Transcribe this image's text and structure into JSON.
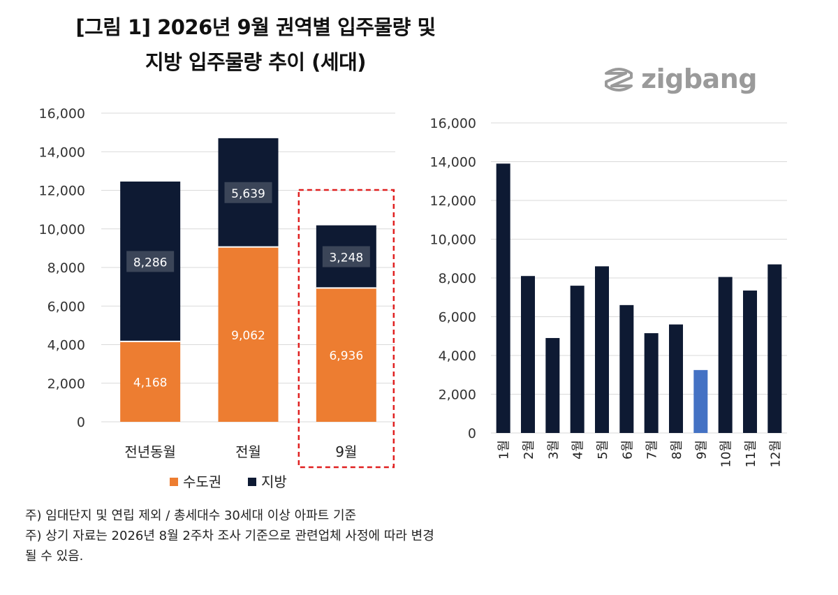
{
  "title": {
    "line1": "[그림 1] 2026년 9월 권역별 입주물량 및",
    "line2": "지방 입주물량 추이 (세대)"
  },
  "logo": {
    "text": "zigbang",
    "icon": "zigbang-logo-icon",
    "color": "#9a9a9a"
  },
  "colors": {
    "metro": "#ED7D31",
    "regional": "#0E1A33",
    "highlight": "#4472C4",
    "dashed_box": "#E02020",
    "grid": "#D9D9D9"
  },
  "chart_data": [
    {
      "type": "bar",
      "stacked": true,
      "categories": [
        "전년동월",
        "전월",
        "9월"
      ],
      "series": [
        {
          "name": "수도권",
          "values": [
            4168,
            9062,
            6936
          ]
        },
        {
          "name": "지방",
          "values": [
            8286,
            5639,
            3248
          ]
        }
      ],
      "data_labels": {
        "수도권": [
          "4,168",
          "9,062",
          "6,936"
        ],
        "지방": [
          "8,286",
          "5,639",
          "3,248"
        ]
      },
      "ylim": [
        0,
        16000
      ],
      "yticks": [
        "0",
        "2,000",
        "4,000",
        "6,000",
        "8,000",
        "10,000",
        "12,000",
        "14,000",
        "16,000"
      ],
      "highlighted_category": "9월",
      "legend": "bottom",
      "grid": true
    },
    {
      "type": "bar",
      "categories": [
        "1월",
        "2월",
        "3월",
        "4월",
        "5월",
        "6월",
        "7월",
        "8월",
        "9월",
        "10월",
        "11월",
        "12월"
      ],
      "values": [
        13900,
        8100,
        4900,
        7600,
        8600,
        6600,
        5150,
        5600,
        3248,
        8050,
        7350,
        8700
      ],
      "highlighted_category": "9월",
      "ylim": [
        0,
        16000
      ],
      "yticks": [
        "0",
        "2,000",
        "4,000",
        "6,000",
        "8,000",
        "10,000",
        "12,000",
        "14,000",
        "16,000"
      ],
      "grid": true
    }
  ],
  "footnotes": [
    "주) 임대단지 및 연립 제외 / 총세대수 30세대 이상 아파트 기준",
    "주) 상기 자료는 2026년 8월 2주차 조사 기준으로 관련업체 사정에 따라 변경",
    "될 수 있음."
  ]
}
